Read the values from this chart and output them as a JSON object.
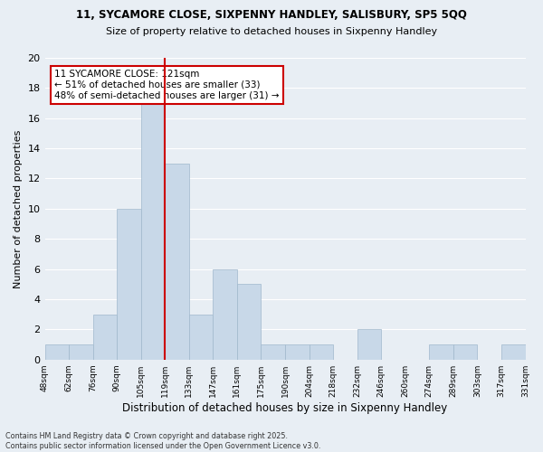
{
  "title1": "11, SYCAMORE CLOSE, SIXPENNY HANDLEY, SALISBURY, SP5 5QQ",
  "title2": "Size of property relative to detached houses in Sixpenny Handley",
  "xlabel": "Distribution of detached houses by size in Sixpenny Handley",
  "ylabel": "Number of detached properties",
  "bin_labels": [
    "48sqm",
    "62sqm",
    "76sqm",
    "90sqm",
    "105sqm",
    "119sqm",
    "133sqm",
    "147sqm",
    "161sqm",
    "175sqm",
    "190sqm",
    "204sqm",
    "218sqm",
    "232sqm",
    "246sqm",
    "260sqm",
    "274sqm",
    "289sqm",
    "303sqm",
    "317sqm",
    "331sqm"
  ],
  "bar_values": [
    1,
    1,
    3,
    10,
    17,
    13,
    3,
    6,
    5,
    1,
    1,
    1,
    0,
    2,
    0,
    0,
    1,
    1,
    0,
    1
  ],
  "bar_color": "#c8d8e8",
  "bar_edge_color": "#a0b8cc",
  "vline_color": "#cc0000",
  "ylim": [
    0,
    20
  ],
  "yticks": [
    0,
    2,
    4,
    6,
    8,
    10,
    12,
    14,
    16,
    18,
    20
  ],
  "annotation_title": "11 SYCAMORE CLOSE: 121sqm",
  "annotation_line1": "← 51% of detached houses are smaller (33)",
  "annotation_line2": "48% of semi-detached houses are larger (31) →",
  "annotation_box_color": "#ffffff",
  "annotation_box_edge": "#cc0000",
  "footnote1": "Contains HM Land Registry data © Crown copyright and database right 2025.",
  "footnote2": "Contains public sector information licensed under the Open Government Licence v3.0.",
  "bg_color": "#e8eef4",
  "grid_color": "#ffffff"
}
